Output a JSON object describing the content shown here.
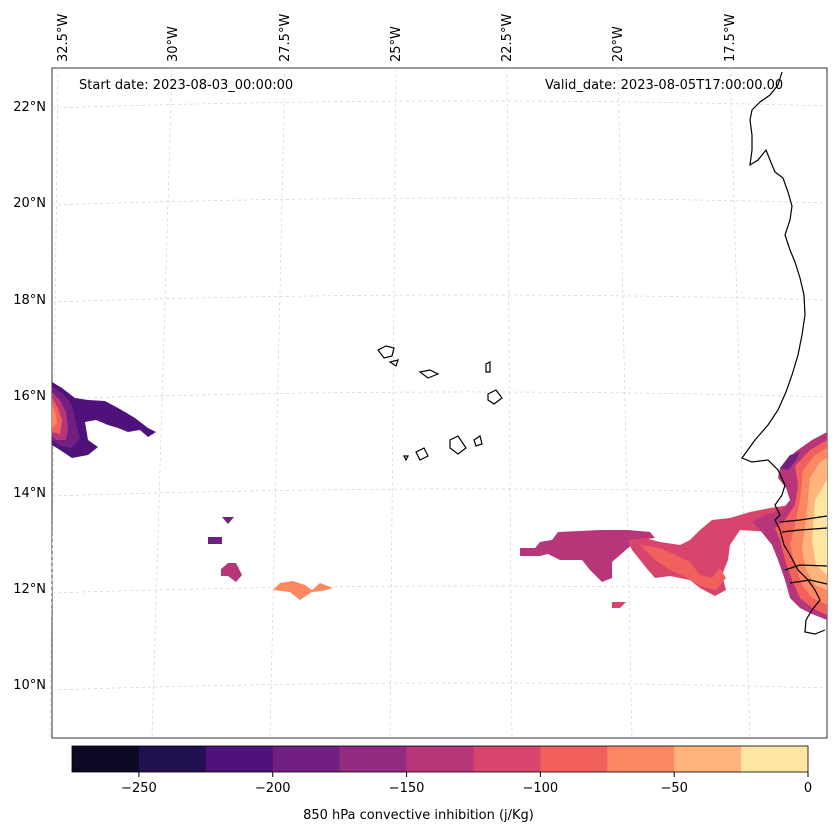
{
  "header": {
    "start_date": "Start date: 2023-08-03_00:00:00",
    "valid_date": "Valid_date: 2023-08-05T17:00:00.00"
  },
  "map": {
    "longitude_labels": [
      "32.5°W",
      "30°W",
      "27.5°W",
      "25°W",
      "22.5°W",
      "20°W",
      "17.5°W"
    ],
    "latitude_labels": [
      "22°N",
      "20°N",
      "18°N",
      "16°N",
      "14°N",
      "12°N",
      "10°N"
    ],
    "gridlines": true
  },
  "colorbar": {
    "label": "850 hPa convective inhibition (j/Kg)",
    "tick_labels": [
      "−250",
      "−200",
      "−150",
      "−100",
      "−50",
      "0"
    ],
    "colors": [
      "#0b0924",
      "#221150",
      "#4f127b",
      "#711f81",
      "#932b80",
      "#b63679",
      "#d8456c",
      "#f1605d",
      "#fb8861",
      "#feb47b",
      "#fde5a2"
    ],
    "range": [
      -275,
      0
    ]
  }
}
